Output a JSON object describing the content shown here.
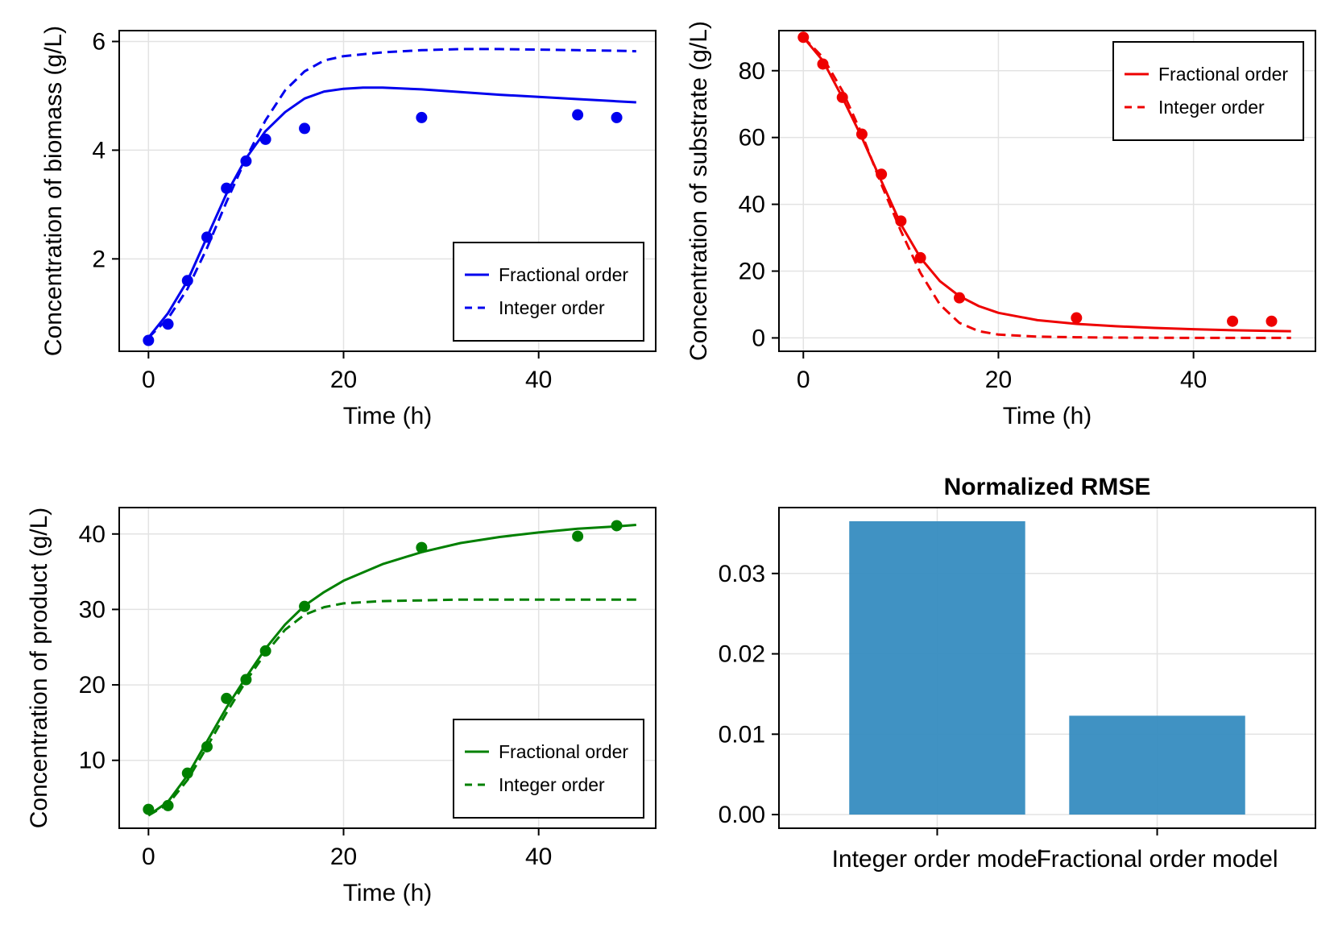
{
  "chart_data": [
    {
      "type": "line",
      "xlabel": "Time (h)",
      "ylabel": "Concentration of biomass (g/L)",
      "xlim": [
        -3,
        52
      ],
      "ylim": [
        0.3,
        6.2
      ],
      "xticks": [
        0,
        20,
        40
      ],
      "yticks": [
        2,
        4,
        6
      ],
      "grid": true,
      "legend_position": "bottom-right",
      "color": "#0000ee",
      "series": [
        {
          "name": "Fractional order",
          "style": "solid",
          "x": [
            0,
            2,
            4,
            6,
            8,
            10,
            12,
            14,
            16,
            18,
            20,
            22,
            24,
            28,
            32,
            36,
            40,
            44,
            48,
            50
          ],
          "y": [
            0.55,
            1.0,
            1.6,
            2.4,
            3.2,
            3.85,
            4.35,
            4.7,
            4.95,
            5.08,
            5.13,
            5.15,
            5.15,
            5.12,
            5.07,
            5.02,
            4.98,
            4.94,
            4.9,
            4.88
          ]
        },
        {
          "name": "Integer order",
          "style": "dashed",
          "x": [
            0,
            2,
            4,
            6,
            8,
            10,
            12,
            14,
            16,
            18,
            20,
            24,
            28,
            32,
            36,
            40,
            44,
            48,
            50
          ],
          "y": [
            0.55,
            0.9,
            1.45,
            2.2,
            3.05,
            3.85,
            4.55,
            5.1,
            5.45,
            5.65,
            5.73,
            5.8,
            5.84,
            5.86,
            5.86,
            5.85,
            5.84,
            5.83,
            5.82
          ]
        }
      ],
      "points": {
        "x": [
          0,
          2,
          4,
          6,
          8,
          10,
          12,
          16,
          28,
          44,
          48
        ],
        "y": [
          0.5,
          0.8,
          1.6,
          2.4,
          3.3,
          3.8,
          4.2,
          4.4,
          4.6,
          4.65,
          4.6
        ]
      }
    },
    {
      "type": "line",
      "xlabel": "Time (h)",
      "ylabel": "Concentration of substrate (g/L)",
      "xlim": [
        -2.5,
        52.5
      ],
      "ylim": [
        -4,
        92
      ],
      "xticks": [
        0,
        20,
        40
      ],
      "yticks": [
        0,
        20,
        40,
        60,
        80
      ],
      "grid": true,
      "legend_position": "top-right",
      "color": "#ee0000",
      "series": [
        {
          "name": "Fractional order",
          "style": "solid",
          "x": [
            0,
            2,
            4,
            6,
            8,
            10,
            12,
            14,
            16,
            18,
            20,
            24,
            28,
            32,
            36,
            40,
            44,
            48,
            50
          ],
          "y": [
            90,
            83,
            72,
            60,
            47,
            34,
            24,
            17,
            12.5,
            9.5,
            7.5,
            5.3,
            4.2,
            3.5,
            3.0,
            2.6,
            2.3,
            2.1,
            2.0
          ]
        },
        {
          "name": "Integer order",
          "style": "dashed",
          "x": [
            0,
            2,
            4,
            6,
            8,
            10,
            12,
            14,
            16,
            18,
            20,
            24,
            28,
            32,
            36,
            40,
            44,
            48,
            50
          ],
          "y": [
            90,
            84,
            74,
            61,
            46,
            32,
            19.5,
            10,
            4.5,
            2,
            1,
            0.4,
            0.2,
            0.1,
            0.05,
            0,
            0,
            0,
            0
          ]
        }
      ],
      "points": {
        "x": [
          0,
          2,
          4,
          6,
          8,
          10,
          12,
          16,
          28,
          44,
          48
        ],
        "y": [
          90,
          82,
          72,
          61,
          49,
          35,
          24,
          12,
          6,
          5,
          5
        ]
      }
    },
    {
      "type": "line",
      "xlabel": "Time (h)",
      "ylabel": "Concentration of product (g/L)",
      "xlim": [
        -3,
        52
      ],
      "ylim": [
        1,
        43.5
      ],
      "xticks": [
        0,
        20,
        40
      ],
      "yticks": [
        10,
        20,
        30,
        40
      ],
      "grid": true,
      "legend_position": "bottom-right",
      "color": "#008000",
      "series": [
        {
          "name": "Fractional order",
          "style": "solid",
          "x": [
            0,
            2,
            4,
            6,
            8,
            10,
            12,
            14,
            16,
            18,
            20,
            24,
            28,
            32,
            36,
            40,
            44,
            48,
            50
          ],
          "y": [
            2.7,
            4.5,
            8.0,
            12.5,
            17.0,
            21.0,
            24.8,
            28.0,
            30.5,
            32.3,
            33.8,
            36.0,
            37.6,
            38.8,
            39.6,
            40.2,
            40.7,
            41.0,
            41.2
          ]
        },
        {
          "name": "Integer order",
          "style": "dashed",
          "x": [
            0,
            2,
            4,
            6,
            8,
            10,
            12,
            14,
            16,
            18,
            20,
            24,
            28,
            32,
            36,
            40,
            44,
            48,
            50
          ],
          "y": [
            2.7,
            4.2,
            7.4,
            11.8,
            16.3,
            20.5,
            24.2,
            27.3,
            29.3,
            30.3,
            30.8,
            31.1,
            31.2,
            31.3,
            31.3,
            31.3,
            31.3,
            31.3,
            31.3
          ]
        }
      ],
      "points": {
        "x": [
          0,
          2,
          4,
          6,
          8,
          10,
          12,
          16,
          28,
          44,
          48
        ],
        "y": [
          3.5,
          4.0,
          8.3,
          11.8,
          18.2,
          20.7,
          24.5,
          30.4,
          38.2,
          39.7,
          41.1
        ]
      }
    },
    {
      "type": "bar",
      "title": "Normalized RMSE",
      "categories": [
        "Integer order model",
        "Fractional order model"
      ],
      "values": [
        0.0365,
        0.0123
      ],
      "ylim": [
        -0.0017,
        0.0382
      ],
      "yticks": [
        0.0,
        0.01,
        0.02,
        0.03
      ],
      "ytick_labels": [
        "0.00",
        "0.01",
        "0.02",
        "0.03"
      ],
      "grid": true,
      "color": "#3a8ec1"
    }
  ]
}
